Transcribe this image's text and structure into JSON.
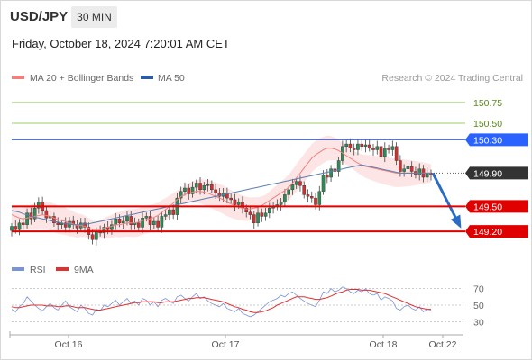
{
  "header": {
    "symbol": "USD/JPY",
    "timeframe": "30 MIN",
    "timestamp": "Friday, October 18, 2024 7:20:01 AM CET"
  },
  "legend": {
    "ma20_label": "MA 20 + Bollinger Bands",
    "ma50_label": "MA 50",
    "copyright": "Research © 2024 Trading Central",
    "rsi_label": "RSI",
    "rsi_ma_label": "9MA"
  },
  "colors": {
    "ma20": "#f08080",
    "bollinger_fill": "#fde0e0",
    "ma50": "#5b7fb0",
    "resistance_green": "#9ccc65",
    "blue_level": "#2962ff",
    "red_level": "#e00000",
    "candle_up": "#2e8b57",
    "candle_down": "#d32f2f",
    "arrow": "#2a6cc4",
    "rsi": "#7a93d8",
    "rsi_ma": "#e03030"
  },
  "chart_data": [
    {
      "type": "candlestick",
      "ylim": [
        149.06,
        150.9
      ],
      "x_ticks": [
        "Oct 16",
        "Oct 17",
        "Oct 18",
        "Oct 22"
      ],
      "levels": [
        {
          "label": "150.75",
          "value": 150.75,
          "style": "green-line"
        },
        {
          "label": "150.50",
          "value": 150.5,
          "style": "green-line"
        },
        {
          "label": "150.30",
          "value": 150.3,
          "style": "blue-box"
        },
        {
          "label": "149.90",
          "value": 149.9,
          "style": "current-price"
        },
        {
          "label": "149.50",
          "value": 149.5,
          "style": "red-box"
        },
        {
          "label": "149.20",
          "value": 149.2,
          "style": "red-box"
        }
      ],
      "close": [
        149.26,
        149.22,
        149.3,
        149.28,
        149.42,
        149.35,
        149.48,
        149.55,
        149.45,
        149.36,
        149.38,
        149.3,
        149.28,
        149.3,
        149.25,
        149.32,
        149.28,
        149.24,
        149.3,
        149.25,
        149.16,
        149.1,
        149.2,
        149.18,
        149.25,
        149.22,
        149.28,
        149.35,
        149.3,
        149.32,
        149.38,
        149.28,
        149.3,
        149.25,
        149.36,
        149.38,
        149.28,
        149.32,
        149.25,
        149.38,
        149.4,
        149.46,
        149.4,
        149.6,
        149.68,
        149.72,
        149.65,
        149.73,
        149.78,
        149.7,
        149.75,
        149.76,
        149.7,
        149.66,
        149.62,
        149.66,
        149.6,
        149.58,
        149.52,
        149.55,
        149.48,
        149.43,
        149.4,
        149.3,
        149.42,
        149.38,
        149.42,
        149.48,
        149.5,
        149.52,
        149.55,
        149.64,
        149.7,
        149.76,
        149.8,
        149.75,
        149.64,
        149.62,
        149.6,
        149.52,
        149.68,
        149.88,
        149.85,
        149.95,
        149.92,
        150.05,
        150.22,
        150.25,
        150.2,
        150.18,
        150.25,
        150.22,
        150.24,
        150.2,
        150.18,
        150.22,
        150.1,
        150.2,
        150.18,
        150.22,
        150.05,
        149.92,
        149.95,
        149.98,
        149.92,
        149.88,
        149.95,
        149.85,
        149.9,
        149.88
      ],
      "ma20": [
        149.4,
        149.38,
        149.36,
        149.35,
        149.36,
        149.37,
        149.38,
        149.39,
        149.4,
        149.39,
        149.38,
        149.36,
        149.34,
        149.33,
        149.32,
        149.3,
        149.29,
        149.27,
        149.27,
        149.26,
        149.24,
        149.22,
        149.22,
        149.22,
        149.24,
        149.25,
        149.26,
        149.28,
        149.28,
        149.29,
        149.3,
        149.3,
        149.3,
        149.31,
        149.33,
        149.34,
        149.35,
        149.37,
        149.39,
        149.43,
        149.46,
        149.5,
        149.54,
        149.58,
        149.62,
        149.64,
        149.66,
        149.67,
        149.68,
        149.68,
        149.67,
        149.66,
        149.64,
        149.62,
        149.6,
        149.58,
        149.55,
        149.53,
        149.51,
        149.49,
        149.48,
        149.47,
        149.47,
        149.48,
        149.49,
        149.51,
        149.54,
        149.57,
        149.6,
        149.63,
        149.66,
        149.69,
        149.73,
        149.78,
        149.84,
        149.9,
        149.96,
        150.02,
        150.08,
        150.12,
        150.15,
        150.18,
        150.2,
        150.2,
        150.19,
        150.17,
        150.14,
        150.11,
        150.08,
        150.05,
        150.02,
        150.0,
        149.98,
        149.97,
        149.96,
        149.95,
        149.94,
        149.93,
        149.92,
        149.91,
        149.9,
        149.9,
        149.9,
        149.9,
        149.9,
        149.9,
        149.9,
        149.9,
        149.9,
        149.9
      ],
      "ma50": [
        149.45,
        149.44,
        149.43,
        149.41,
        149.4,
        149.38,
        149.37,
        149.36,
        149.35,
        149.34,
        149.33,
        149.32,
        149.31,
        149.3,
        149.29,
        149.29,
        149.28,
        149.28,
        149.28,
        149.29,
        149.29,
        149.3,
        149.31,
        149.32,
        149.33,
        149.34,
        149.35,
        149.36,
        149.37,
        149.38,
        149.39,
        149.4,
        149.41,
        149.42,
        149.43,
        149.44,
        149.45,
        149.46,
        149.47,
        149.48,
        149.49,
        149.5,
        149.51,
        149.52,
        149.53,
        149.54,
        149.55,
        149.56,
        149.57,
        149.58,
        149.59,
        149.6,
        149.61,
        149.62,
        149.63,
        149.64,
        149.65,
        149.66,
        149.67,
        149.68,
        149.69,
        149.7,
        149.71,
        149.72,
        149.73,
        149.74,
        149.75,
        149.76,
        149.77,
        149.78,
        149.79,
        149.8,
        149.81,
        149.82,
        149.83,
        149.84,
        149.85,
        149.86,
        149.87,
        149.88,
        149.89,
        149.9,
        149.91,
        149.92,
        149.93,
        149.94,
        149.95,
        149.96,
        149.97,
        149.98,
        149.99,
        150.0,
        149.99,
        149.98,
        149.97,
        149.96,
        149.95,
        149.94,
        149.93,
        149.92,
        149.91,
        149.9,
        149.9,
        149.9,
        149.9,
        149.9,
        149.9,
        149.9,
        149.9,
        149.9
      ],
      "projection": {
        "from": 149.9,
        "to": 149.2
      }
    },
    {
      "type": "line",
      "title": "RSI",
      "ylim": [
        25,
        75
      ],
      "y_ticks": [
        70,
        50,
        30
      ],
      "series": [
        {
          "name": "RSI",
          "values": [
            45,
            42,
            48,
            52,
            60,
            55,
            50,
            46,
            43,
            48,
            52,
            47,
            44,
            50,
            55,
            48,
            45,
            42,
            50,
            46,
            40,
            38,
            45,
            43,
            50,
            48,
            52,
            56,
            50,
            54,
            58,
            52,
            55,
            50,
            58,
            56,
            50,
            54,
            48,
            56,
            58,
            55,
            52,
            60,
            62,
            58,
            55,
            60,
            64,
            58,
            60,
            55,
            52,
            50,
            48,
            52,
            46,
            44,
            42,
            46,
            40,
            38,
            36,
            38,
            42,
            46,
            50,
            54,
            56,
            58,
            62,
            60,
            64,
            66,
            62,
            58,
            55,
            52,
            50,
            48,
            56,
            66,
            64,
            70,
            66,
            68,
            72,
            70,
            66,
            64,
            68,
            66,
            70,
            64,
            62,
            64,
            56,
            60,
            58,
            55,
            46,
            44,
            48,
            50,
            46,
            44,
            48,
            42,
            45,
            44
          ]
        },
        {
          "name": "9MA",
          "values": [
            48,
            47,
            47,
            48,
            49,
            50,
            50,
            50,
            50,
            49,
            49,
            49,
            48,
            48,
            49,
            49,
            48,
            47,
            47,
            47,
            46,
            45,
            44,
            44,
            45,
            46,
            47,
            48,
            49,
            50,
            51,
            52,
            53,
            53,
            54,
            54,
            54,
            54,
            53,
            53,
            54,
            54,
            54,
            55,
            56,
            57,
            58,
            58,
            59,
            59,
            59,
            58,
            57,
            56,
            55,
            54,
            52,
            50,
            48,
            47,
            45,
            44,
            42,
            41,
            41,
            42,
            43,
            45,
            47,
            50,
            52,
            54,
            56,
            58,
            60,
            60,
            60,
            59,
            58,
            57,
            57,
            58,
            59,
            61,
            63,
            65,
            66,
            68,
            69,
            69,
            69,
            68,
            68,
            68,
            67,
            66,
            65,
            64,
            62,
            60,
            58,
            56,
            54,
            52,
            50,
            48,
            47,
            46,
            45,
            45
          ]
        }
      ]
    }
  ]
}
